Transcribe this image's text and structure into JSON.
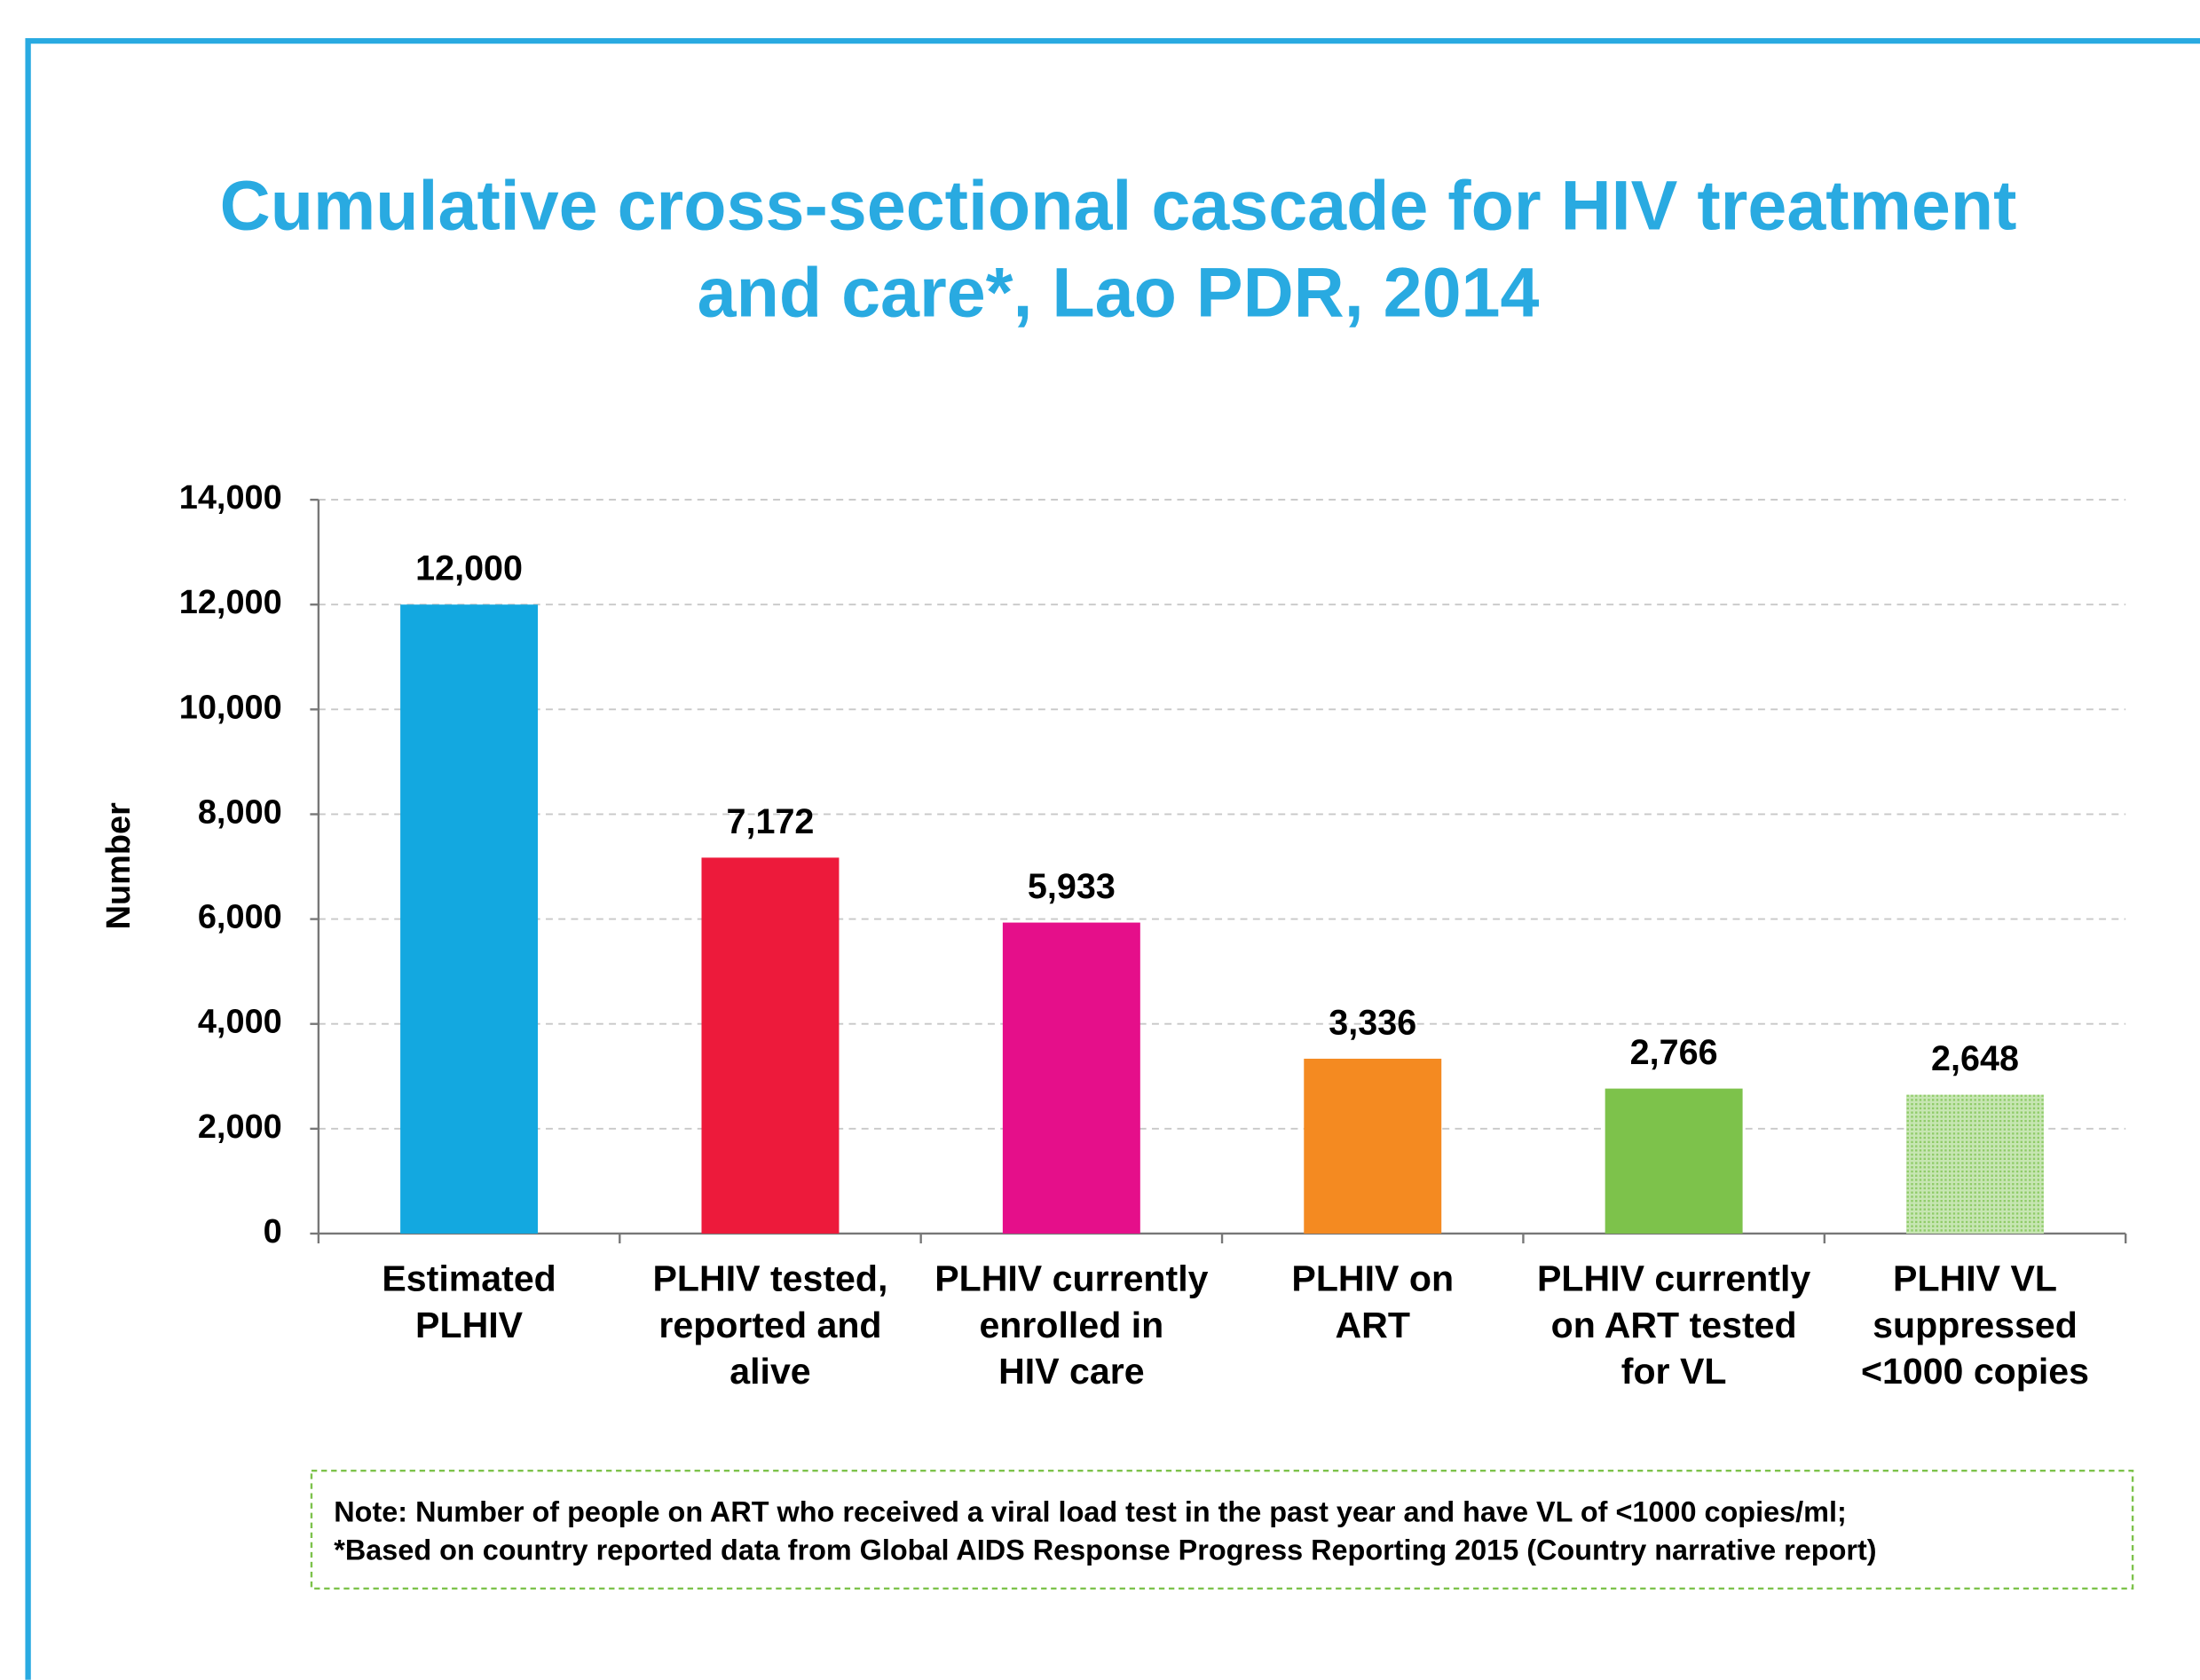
{
  "chart_data": {
    "type": "bar",
    "title": [
      "Cumulative cross-sectional cascade for HIV treatment",
      "and care*, Lao PDR, 2014"
    ],
    "y_label": "Number",
    "categories": [
      "Estimated\nPLHIV",
      "PLHIV tested,\nreported and\nalive",
      "PLHIV currently\nenrolled in\nHIV care",
      "PLHIV on\nART",
      "PLHIV currently\non ART tested\nfor VL",
      "PLHIV VL\nsuppressed\n<1000 copies"
    ],
    "values": [
      12000,
      7172,
      5933,
      3336,
      2766,
      2648
    ],
    "value_labels": [
      "12,000",
      "7,172",
      "5,933",
      "3,336",
      "2,766",
      "2,648"
    ],
    "colors": [
      "#13a8e0",
      "#ed1a3b",
      "#e50f8a",
      "#f48a21",
      "#7dc24b",
      "#9fd27f"
    ],
    "ylim": [
      0,
      14000
    ],
    "yticks": [
      0,
      {
        "value": 2000,
        "label": "2,000"
      },
      {
        "value": 4000,
        "label": "4,000"
      },
      {
        "value": 6000,
        "label": "6,000"
      },
      {
        "value": 8000,
        "label": "8,000"
      },
      {
        "value": 10000,
        "label": "10,000"
      },
      {
        "value": 12000,
        "label": "12,000"
      },
      {
        "value": 14000,
        "label": "14,000"
      }
    ],
    "grid": true,
    "note": [
      "Note: Number of people on ART who received a viral load test in the past year and have VL of <1000 copies/ml;",
      "*Based on country reported data from Global AIDS Response Progress Reporting 2015 (Country narrative report)"
    ]
  }
}
